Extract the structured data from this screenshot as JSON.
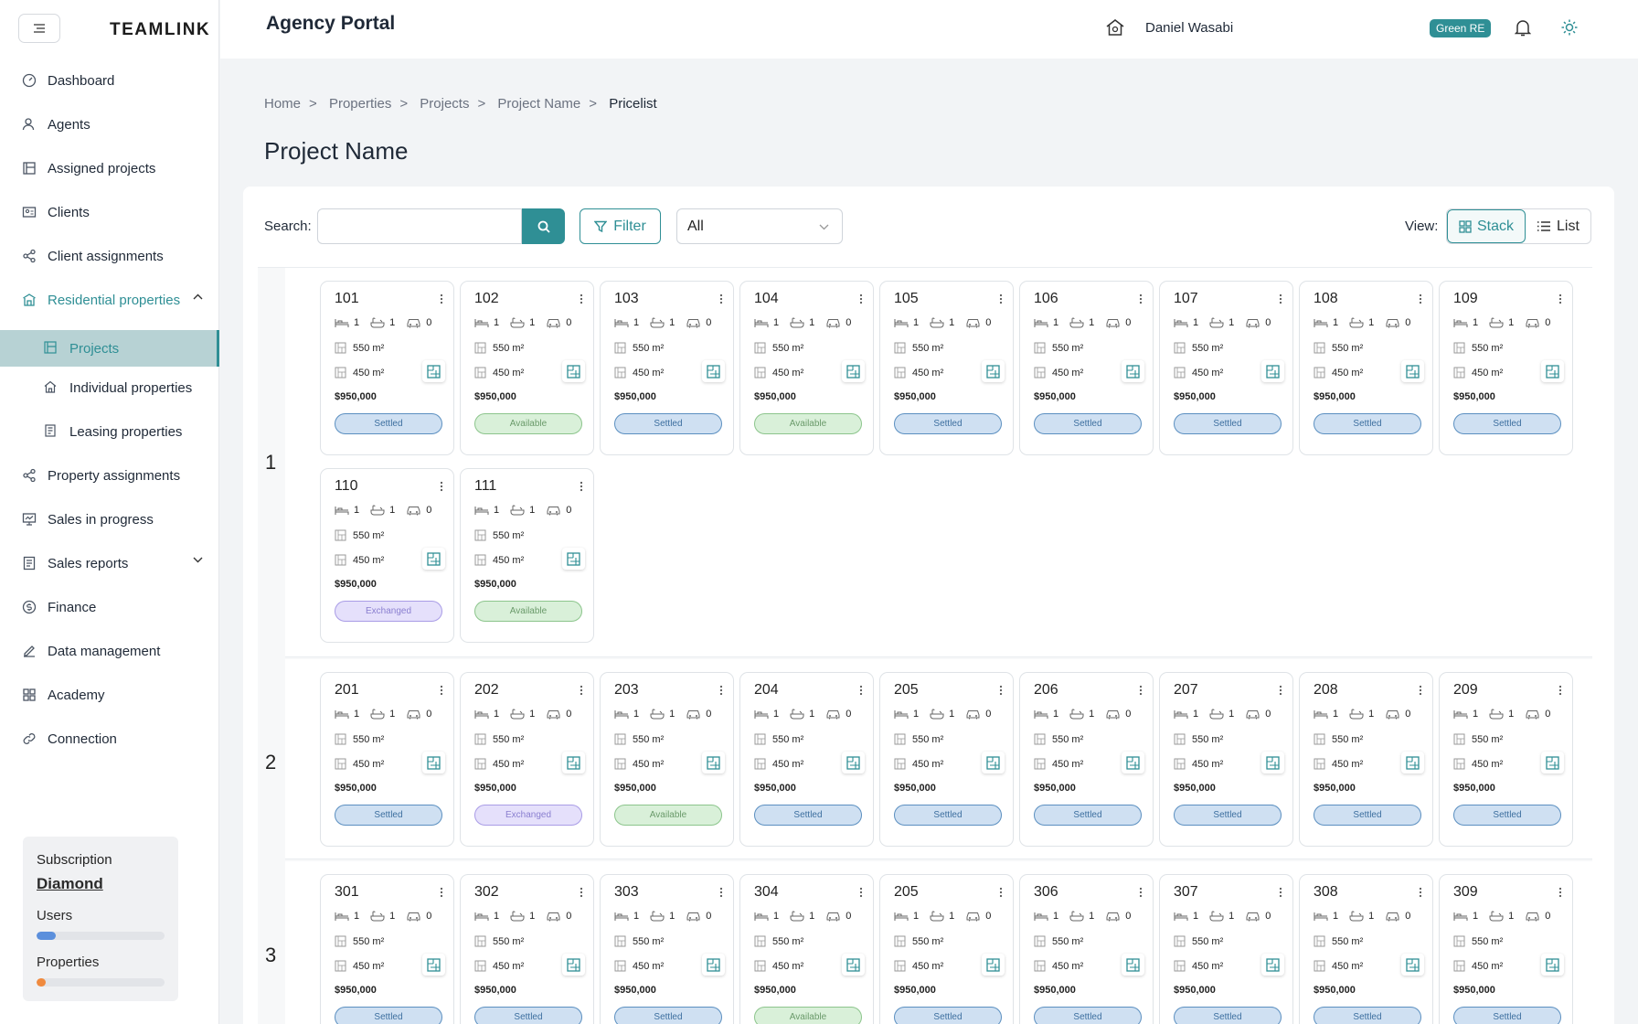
{
  "brand": {
    "logo": "TEAMLINK"
  },
  "sidebar": {
    "items": [
      {
        "label": "Dashboard",
        "icon": "dashboard-icon"
      },
      {
        "label": "Agents",
        "icon": "agents-icon"
      },
      {
        "label": "Assigned projects",
        "icon": "assigned-projects-icon"
      },
      {
        "label": "Clients",
        "icon": "clients-icon"
      },
      {
        "label": "Client assignments",
        "icon": "share-icon"
      },
      {
        "label": "Residential properties",
        "icon": "building-icon"
      },
      {
        "label": "Projects",
        "icon": "projects-icon"
      },
      {
        "label": "Individual properties",
        "icon": "house-icon"
      },
      {
        "label": "Leasing properties",
        "icon": "leasing-icon"
      },
      {
        "label": "Property assignments",
        "icon": "share-icon"
      },
      {
        "label": "Sales in progress",
        "icon": "sales-progress-icon"
      },
      {
        "label": "Sales reports",
        "icon": "report-icon"
      },
      {
        "label": "Finance",
        "icon": "finance-icon"
      },
      {
        "label": "Data management",
        "icon": "edit-icon"
      },
      {
        "label": "Academy",
        "icon": "academy-icon"
      },
      {
        "label": "Connection",
        "icon": "link-icon"
      }
    ],
    "subscription": {
      "title": "Subscription",
      "plan": "Diamond",
      "users_label": "Users",
      "users_progress": 0.15,
      "properties_label": "Properties",
      "properties_progress": 0.07
    }
  },
  "header": {
    "title": "Agency Portal",
    "user_name": "Daniel Wasabi",
    "agency_badge": "Green RE"
  },
  "breadcrumb": [
    "Home",
    "Properties",
    "Projects",
    "Project Name",
    "Pricelist"
  ],
  "page_title": "Project Name",
  "toolbar": {
    "search_label": "Search:",
    "search_value": "",
    "filter_label": "Filter",
    "select_value": "All",
    "view_label": "View:",
    "stack_label": "Stack",
    "list_label": "List"
  },
  "colors": {
    "accent": "#2f8f95",
    "settled": "#cfe0f2",
    "available": "#d9f0d9",
    "exchanged": "#e5e0fb"
  },
  "floors": [
    {
      "floor": "1",
      "units": [
        {
          "number": "101",
          "beds": "1",
          "baths": "1",
          "cars": "0",
          "area_total": "550 m²",
          "area_internal": "450 m²",
          "price": "$950,000",
          "status": "Settled"
        },
        {
          "number": "102",
          "beds": "1",
          "baths": "1",
          "cars": "0",
          "area_total": "550 m²",
          "area_internal": "450 m²",
          "price": "$950,000",
          "status": "Available"
        },
        {
          "number": "103",
          "beds": "1",
          "baths": "1",
          "cars": "0",
          "area_total": "550 m²",
          "area_internal": "450 m²",
          "price": "$950,000",
          "status": "Settled"
        },
        {
          "number": "104",
          "beds": "1",
          "baths": "1",
          "cars": "0",
          "area_total": "550 m²",
          "area_internal": "450 m²",
          "price": "$950,000",
          "status": "Available"
        },
        {
          "number": "105",
          "beds": "1",
          "baths": "1",
          "cars": "0",
          "area_total": "550 m²",
          "area_internal": "450 m²",
          "price": "$950,000",
          "status": "Settled"
        },
        {
          "number": "106",
          "beds": "1",
          "baths": "1",
          "cars": "0",
          "area_total": "550 m²",
          "area_internal": "450 m²",
          "price": "$950,000",
          "status": "Settled"
        },
        {
          "number": "107",
          "beds": "1",
          "baths": "1",
          "cars": "0",
          "area_total": "550 m²",
          "area_internal": "450 m²",
          "price": "$950,000",
          "status": "Settled"
        },
        {
          "number": "108",
          "beds": "1",
          "baths": "1",
          "cars": "0",
          "area_total": "550 m²",
          "area_internal": "450 m²",
          "price": "$950,000",
          "status": "Settled"
        },
        {
          "number": "109",
          "beds": "1",
          "baths": "1",
          "cars": "0",
          "area_total": "550 m²",
          "area_internal": "450 m²",
          "price": "$950,000",
          "status": "Settled"
        },
        {
          "number": "110",
          "beds": "1",
          "baths": "1",
          "cars": "0",
          "area_total": "550 m²",
          "area_internal": "450 m²",
          "price": "$950,000",
          "status": "Exchanged"
        },
        {
          "number": "111",
          "beds": "1",
          "baths": "1",
          "cars": "0",
          "area_total": "550 m²",
          "area_internal": "450 m²",
          "price": "$950,000",
          "status": "Available"
        }
      ]
    },
    {
      "floor": "2",
      "units": [
        {
          "number": "201",
          "beds": "1",
          "baths": "1",
          "cars": "0",
          "area_total": "550 m²",
          "area_internal": "450 m²",
          "price": "$950,000",
          "status": "Settled"
        },
        {
          "number": "202",
          "beds": "1",
          "baths": "1",
          "cars": "0",
          "area_total": "550 m²",
          "area_internal": "450 m²",
          "price": "$950,000",
          "status": "Exchanged"
        },
        {
          "number": "203",
          "beds": "1",
          "baths": "1",
          "cars": "0",
          "area_total": "550 m²",
          "area_internal": "450 m²",
          "price": "$950,000",
          "status": "Available"
        },
        {
          "number": "204",
          "beds": "1",
          "baths": "1",
          "cars": "0",
          "area_total": "550 m²",
          "area_internal": "450 m²",
          "price": "$950,000",
          "status": "Settled"
        },
        {
          "number": "205",
          "beds": "1",
          "baths": "1",
          "cars": "0",
          "area_total": "550 m²",
          "area_internal": "450 m²",
          "price": "$950,000",
          "status": "Settled"
        },
        {
          "number": "206",
          "beds": "1",
          "baths": "1",
          "cars": "0",
          "area_total": "550 m²",
          "area_internal": "450 m²",
          "price": "$950,000",
          "status": "Settled"
        },
        {
          "number": "207",
          "beds": "1",
          "baths": "1",
          "cars": "0",
          "area_total": "550 m²",
          "area_internal": "450 m²",
          "price": "$950,000",
          "status": "Settled"
        },
        {
          "number": "208",
          "beds": "1",
          "baths": "1",
          "cars": "0",
          "area_total": "550 m²",
          "area_internal": "450 m²",
          "price": "$950,000",
          "status": "Settled"
        },
        {
          "number": "209",
          "beds": "1",
          "baths": "1",
          "cars": "0",
          "area_total": "550 m²",
          "area_internal": "450 m²",
          "price": "$950,000",
          "status": "Settled"
        }
      ]
    },
    {
      "floor": "3",
      "units": [
        {
          "number": "301",
          "beds": "1",
          "baths": "1",
          "cars": "0",
          "area_total": "550 m²",
          "area_internal": "450 m²",
          "price": "$950,000",
          "status": "Settled"
        },
        {
          "number": "302",
          "beds": "1",
          "baths": "1",
          "cars": "0",
          "area_total": "550 m²",
          "area_internal": "450 m²",
          "price": "$950,000",
          "status": "Settled"
        },
        {
          "number": "303",
          "beds": "1",
          "baths": "1",
          "cars": "0",
          "area_total": "550 m²",
          "area_internal": "450 m²",
          "price": "$950,000",
          "status": "Settled"
        },
        {
          "number": "304",
          "beds": "1",
          "baths": "1",
          "cars": "0",
          "area_total": "550 m²",
          "area_internal": "450 m²",
          "price": "$950,000",
          "status": "Available"
        },
        {
          "number": "205",
          "beds": "1",
          "baths": "1",
          "cars": "0",
          "area_total": "550 m²",
          "area_internal": "450 m²",
          "price": "$950,000",
          "status": "Settled"
        },
        {
          "number": "306",
          "beds": "1",
          "baths": "1",
          "cars": "0",
          "area_total": "550 m²",
          "area_internal": "450 m²",
          "price": "$950,000",
          "status": "Settled"
        },
        {
          "number": "307",
          "beds": "1",
          "baths": "1",
          "cars": "0",
          "area_total": "550 m²",
          "area_internal": "450 m²",
          "price": "$950,000",
          "status": "Settled"
        },
        {
          "number": "308",
          "beds": "1",
          "baths": "1",
          "cars": "0",
          "area_total": "550 m²",
          "area_internal": "450 m²",
          "price": "$950,000",
          "status": "Settled"
        },
        {
          "number": "309",
          "beds": "1",
          "baths": "1",
          "cars": "0",
          "area_total": "550 m²",
          "area_internal": "450 m²",
          "price": "$950,000",
          "status": "Settled"
        }
      ]
    }
  ]
}
